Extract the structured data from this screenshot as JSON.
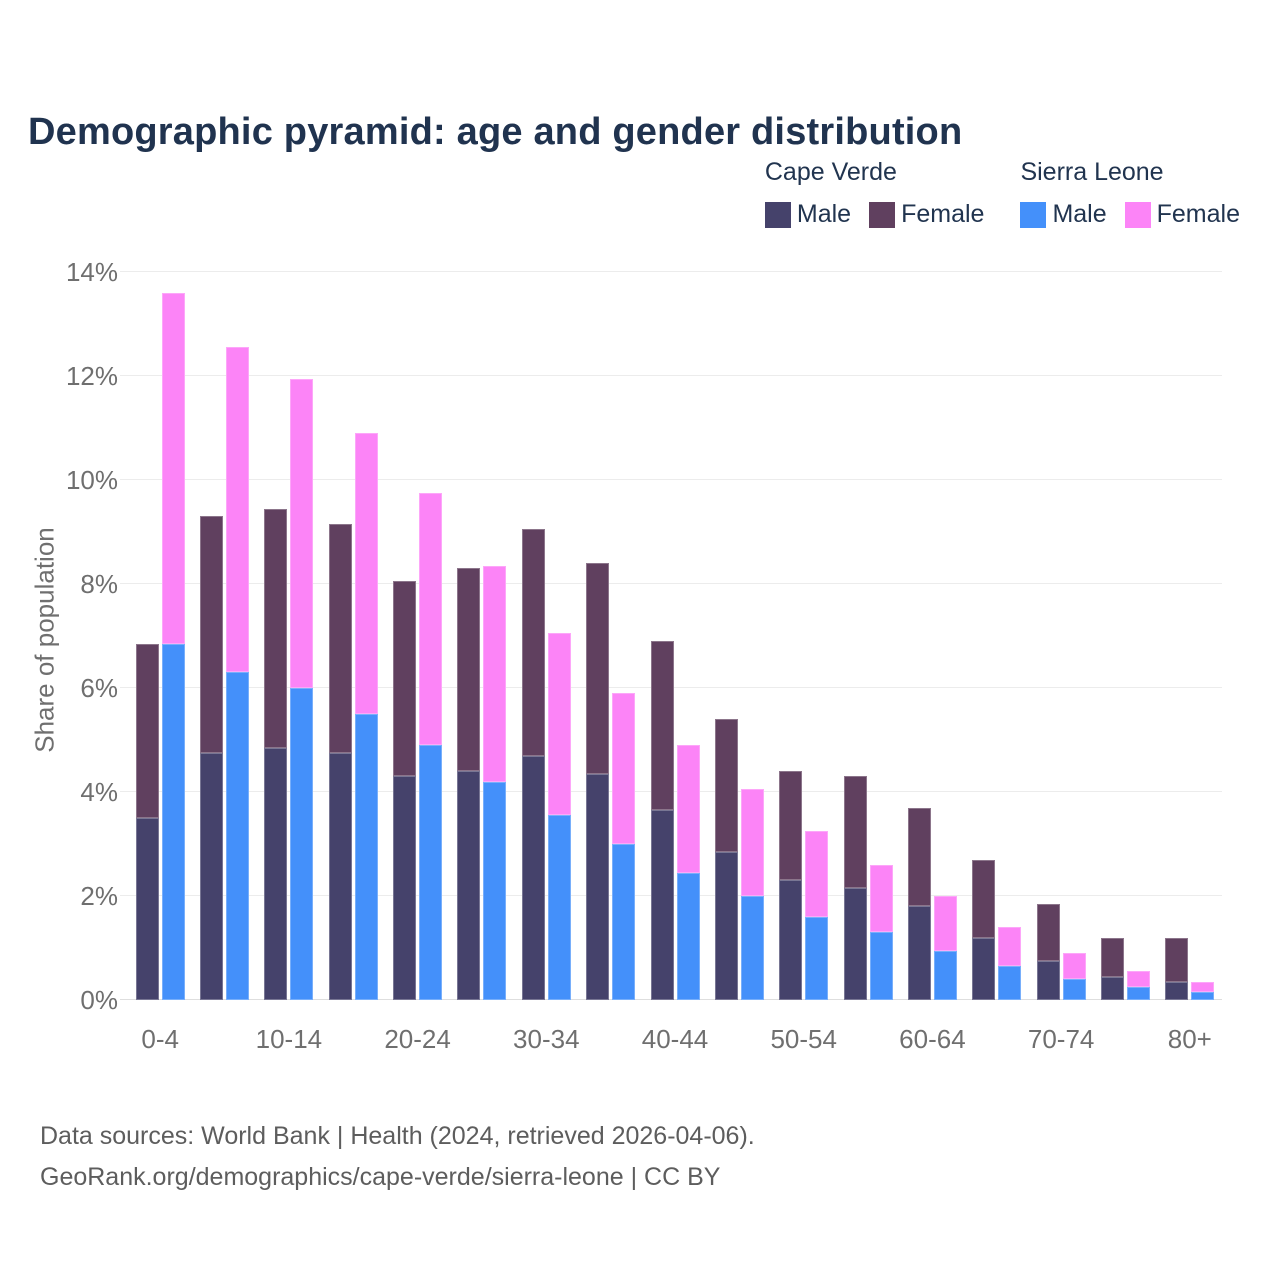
{
  "title": "Demographic pyramid: age and gender distribution",
  "legend": {
    "groups": [
      {
        "title": "Cape Verde",
        "items": [
          {
            "label": "Male",
            "color": "#45426b"
          },
          {
            "label": "Female",
            "color": "#60405f"
          }
        ]
      },
      {
        "title": "Sierra Leone",
        "items": [
          {
            "label": "Male",
            "color": "#4490fa"
          },
          {
            "label": "Female",
            "color": "#fc84f7"
          }
        ]
      }
    ]
  },
  "footer": {
    "line1": "Data sources: World Bank | Health (2024, retrieved 2026-04-06).",
    "line2": "GeoRank.org/demographics/cape-verde/sierra-leone | CC BY"
  },
  "chart_data": {
    "type": "bar",
    "stacked": true,
    "title": "Demographic pyramid: age and gender distribution",
    "xlabel": "",
    "ylabel": "Share of population",
    "ylim": [
      0,
      14
    ],
    "grid": "horizontal",
    "legend_position": "top-right",
    "y_ticks": [
      {
        "value": 0,
        "label": "0%"
      },
      {
        "value": 2,
        "label": "2%"
      },
      {
        "value": 4,
        "label": "4%"
      },
      {
        "value": 6,
        "label": "6%"
      },
      {
        "value": 8,
        "label": "8%"
      },
      {
        "value": 10,
        "label": "10%"
      },
      {
        "value": 12,
        "label": "12%"
      },
      {
        "value": 14,
        "label": "14%"
      }
    ],
    "x_tick_labels_shown": [
      "0-4",
      "10-14",
      "20-24",
      "30-34",
      "40-44",
      "50-54",
      "60-64",
      "70-74",
      "80+"
    ],
    "categories": [
      "0-4",
      "5-9",
      "10-14",
      "15-19",
      "20-24",
      "25-29",
      "30-34",
      "35-39",
      "40-44",
      "45-49",
      "50-54",
      "55-59",
      "60-64",
      "65-69",
      "70-74",
      "75-79",
      "80+"
    ],
    "series": [
      {
        "name": "Cape Verde Male",
        "country": "Cape Verde",
        "gender": "Male",
        "color": "#45426b",
        "values": [
          3.5,
          4.75,
          4.85,
          4.75,
          4.3,
          4.4,
          4.7,
          4.35,
          3.65,
          2.85,
          2.3,
          2.15,
          1.8,
          1.2,
          0.75,
          0.45,
          0.35
        ]
      },
      {
        "name": "Cape Verde Female",
        "country": "Cape Verde",
        "gender": "Female",
        "color": "#60405f",
        "values": [
          3.35,
          4.55,
          4.6,
          4.4,
          3.75,
          3.9,
          4.35,
          4.05,
          3.25,
          2.55,
          2.1,
          2.15,
          1.9,
          1.5,
          1.1,
          0.75,
          0.85
        ]
      },
      {
        "name": "Sierra Leone Male",
        "country": "Sierra Leone",
        "gender": "Male",
        "color": "#4490fa",
        "values": [
          6.85,
          6.3,
          6.0,
          5.5,
          4.9,
          4.2,
          3.55,
          3.0,
          2.45,
          2.0,
          1.6,
          1.3,
          0.95,
          0.65,
          0.4,
          0.25,
          0.15
        ]
      },
      {
        "name": "Sierra Leone Female",
        "country": "Sierra Leone",
        "gender": "Female",
        "color": "#fc84f7",
        "values": [
          6.75,
          6.25,
          5.95,
          5.4,
          4.85,
          4.15,
          3.5,
          2.9,
          2.45,
          2.05,
          1.65,
          1.3,
          1.05,
          0.75,
          0.5,
          0.3,
          0.2
        ]
      }
    ]
  }
}
